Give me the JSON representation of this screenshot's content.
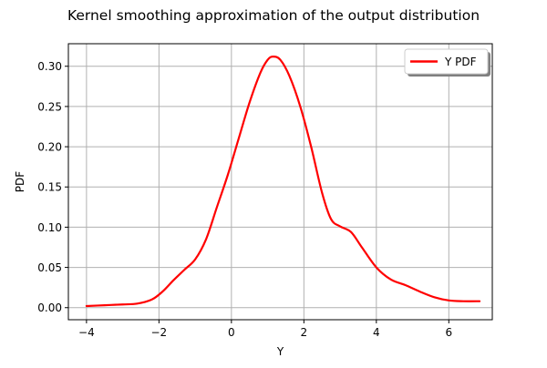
{
  "chart_data": {
    "type": "line",
    "title": "Kernel smoothing approximation of the output distribution",
    "xlabel": "Y",
    "ylabel": "PDF",
    "xlim": [
      -4.5,
      7.2
    ],
    "ylim": [
      -0.015,
      0.328
    ],
    "xticks": [
      -4,
      -2,
      0,
      2,
      4,
      6
    ],
    "yticks": [
      0.0,
      0.05,
      0.1,
      0.15,
      0.2,
      0.25,
      0.3
    ],
    "xtick_labels": [
      "−4",
      "−2",
      "0",
      "2",
      "4",
      "6"
    ],
    "ytick_labels": [
      "0.00",
      "0.05",
      "0.10",
      "0.15",
      "0.20",
      "0.25",
      "0.30"
    ],
    "grid": true,
    "legend_position": "top-right",
    "series": [
      {
        "name": "Y PDF",
        "color": "#ff0000",
        "x": [
          -4.0,
          -3.5,
          -3.0,
          -2.6,
          -2.2,
          -1.9,
          -1.6,
          -1.3,
          -1.0,
          -0.7,
          -0.4,
          -0.1,
          0.2,
          0.5,
          0.8,
          1.0,
          1.15,
          1.35,
          1.6,
          1.9,
          2.2,
          2.5,
          2.75,
          3.0,
          3.3,
          3.6,
          4.0,
          4.4,
          4.8,
          5.2,
          5.6,
          6.0,
          6.4,
          6.85
        ],
        "y": [
          0.002,
          0.003,
          0.004,
          0.005,
          0.01,
          0.02,
          0.034,
          0.047,
          0.06,
          0.085,
          0.125,
          0.165,
          0.21,
          0.255,
          0.292,
          0.308,
          0.312,
          0.308,
          0.288,
          0.25,
          0.2,
          0.143,
          0.11,
          0.101,
          0.094,
          0.075,
          0.05,
          0.035,
          0.028,
          0.02,
          0.013,
          0.009,
          0.008,
          0.008
        ]
      }
    ]
  }
}
